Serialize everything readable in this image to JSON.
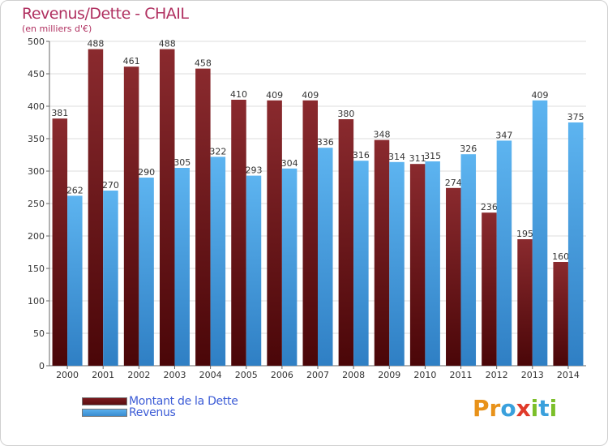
{
  "title": "Revenus/Dette - CHAIL",
  "subtitle": "(en milliers d'€)",
  "colors": {
    "debt": "#7a1a1e",
    "revenue": "#4aa3e6",
    "title": "#b03060"
  },
  "logo": {
    "text": "Proxiti",
    "letters": [
      "P",
      "r",
      "o",
      "x",
      "i",
      "t",
      "i"
    ],
    "colors": [
      "#e8921a",
      "#e8921a",
      "#3aa0dc",
      "#e03a2a",
      "#7cbf2a",
      "#3aa0dc",
      "#7cbf2a"
    ]
  },
  "chart_data": {
    "type": "bar",
    "categories": [
      "2000",
      "2001",
      "2002",
      "2003",
      "2004",
      "2005",
      "2006",
      "2007",
      "2008",
      "2009",
      "2010",
      "2011",
      "2012",
      "2013",
      "2014"
    ],
    "series": [
      {
        "name": "Montant de la Dette",
        "values": [
          381,
          488,
          461,
          488,
          458,
          410,
          409,
          409,
          380,
          348,
          311,
          274,
          236,
          195,
          160
        ]
      },
      {
        "name": "Revenus",
        "values": [
          262,
          270,
          290,
          305,
          322,
          293,
          304,
          336,
          316,
          314,
          315,
          326,
          347,
          409,
          375
        ]
      }
    ],
    "data_labels": [
      [
        "381",
        "488",
        "461",
        "488",
        "458",
        "410",
        "409",
        "409",
        "380",
        "348",
        "311",
        "274",
        "236",
        "195",
        "160"
      ],
      [
        "262",
        "270",
        "290",
        "305",
        "322",
        "293",
        "304",
        "336",
        "316",
        "314",
        "315",
        "326",
        "347",
        "409",
        "375"
      ]
    ],
    "yticks": [
      "0",
      "50",
      "100",
      "150",
      "200",
      "250",
      "300",
      "350",
      "400",
      "450",
      "500"
    ],
    "ylim": [
      0,
      500
    ],
    "grid": true,
    "legend_position": "bottom-left"
  }
}
